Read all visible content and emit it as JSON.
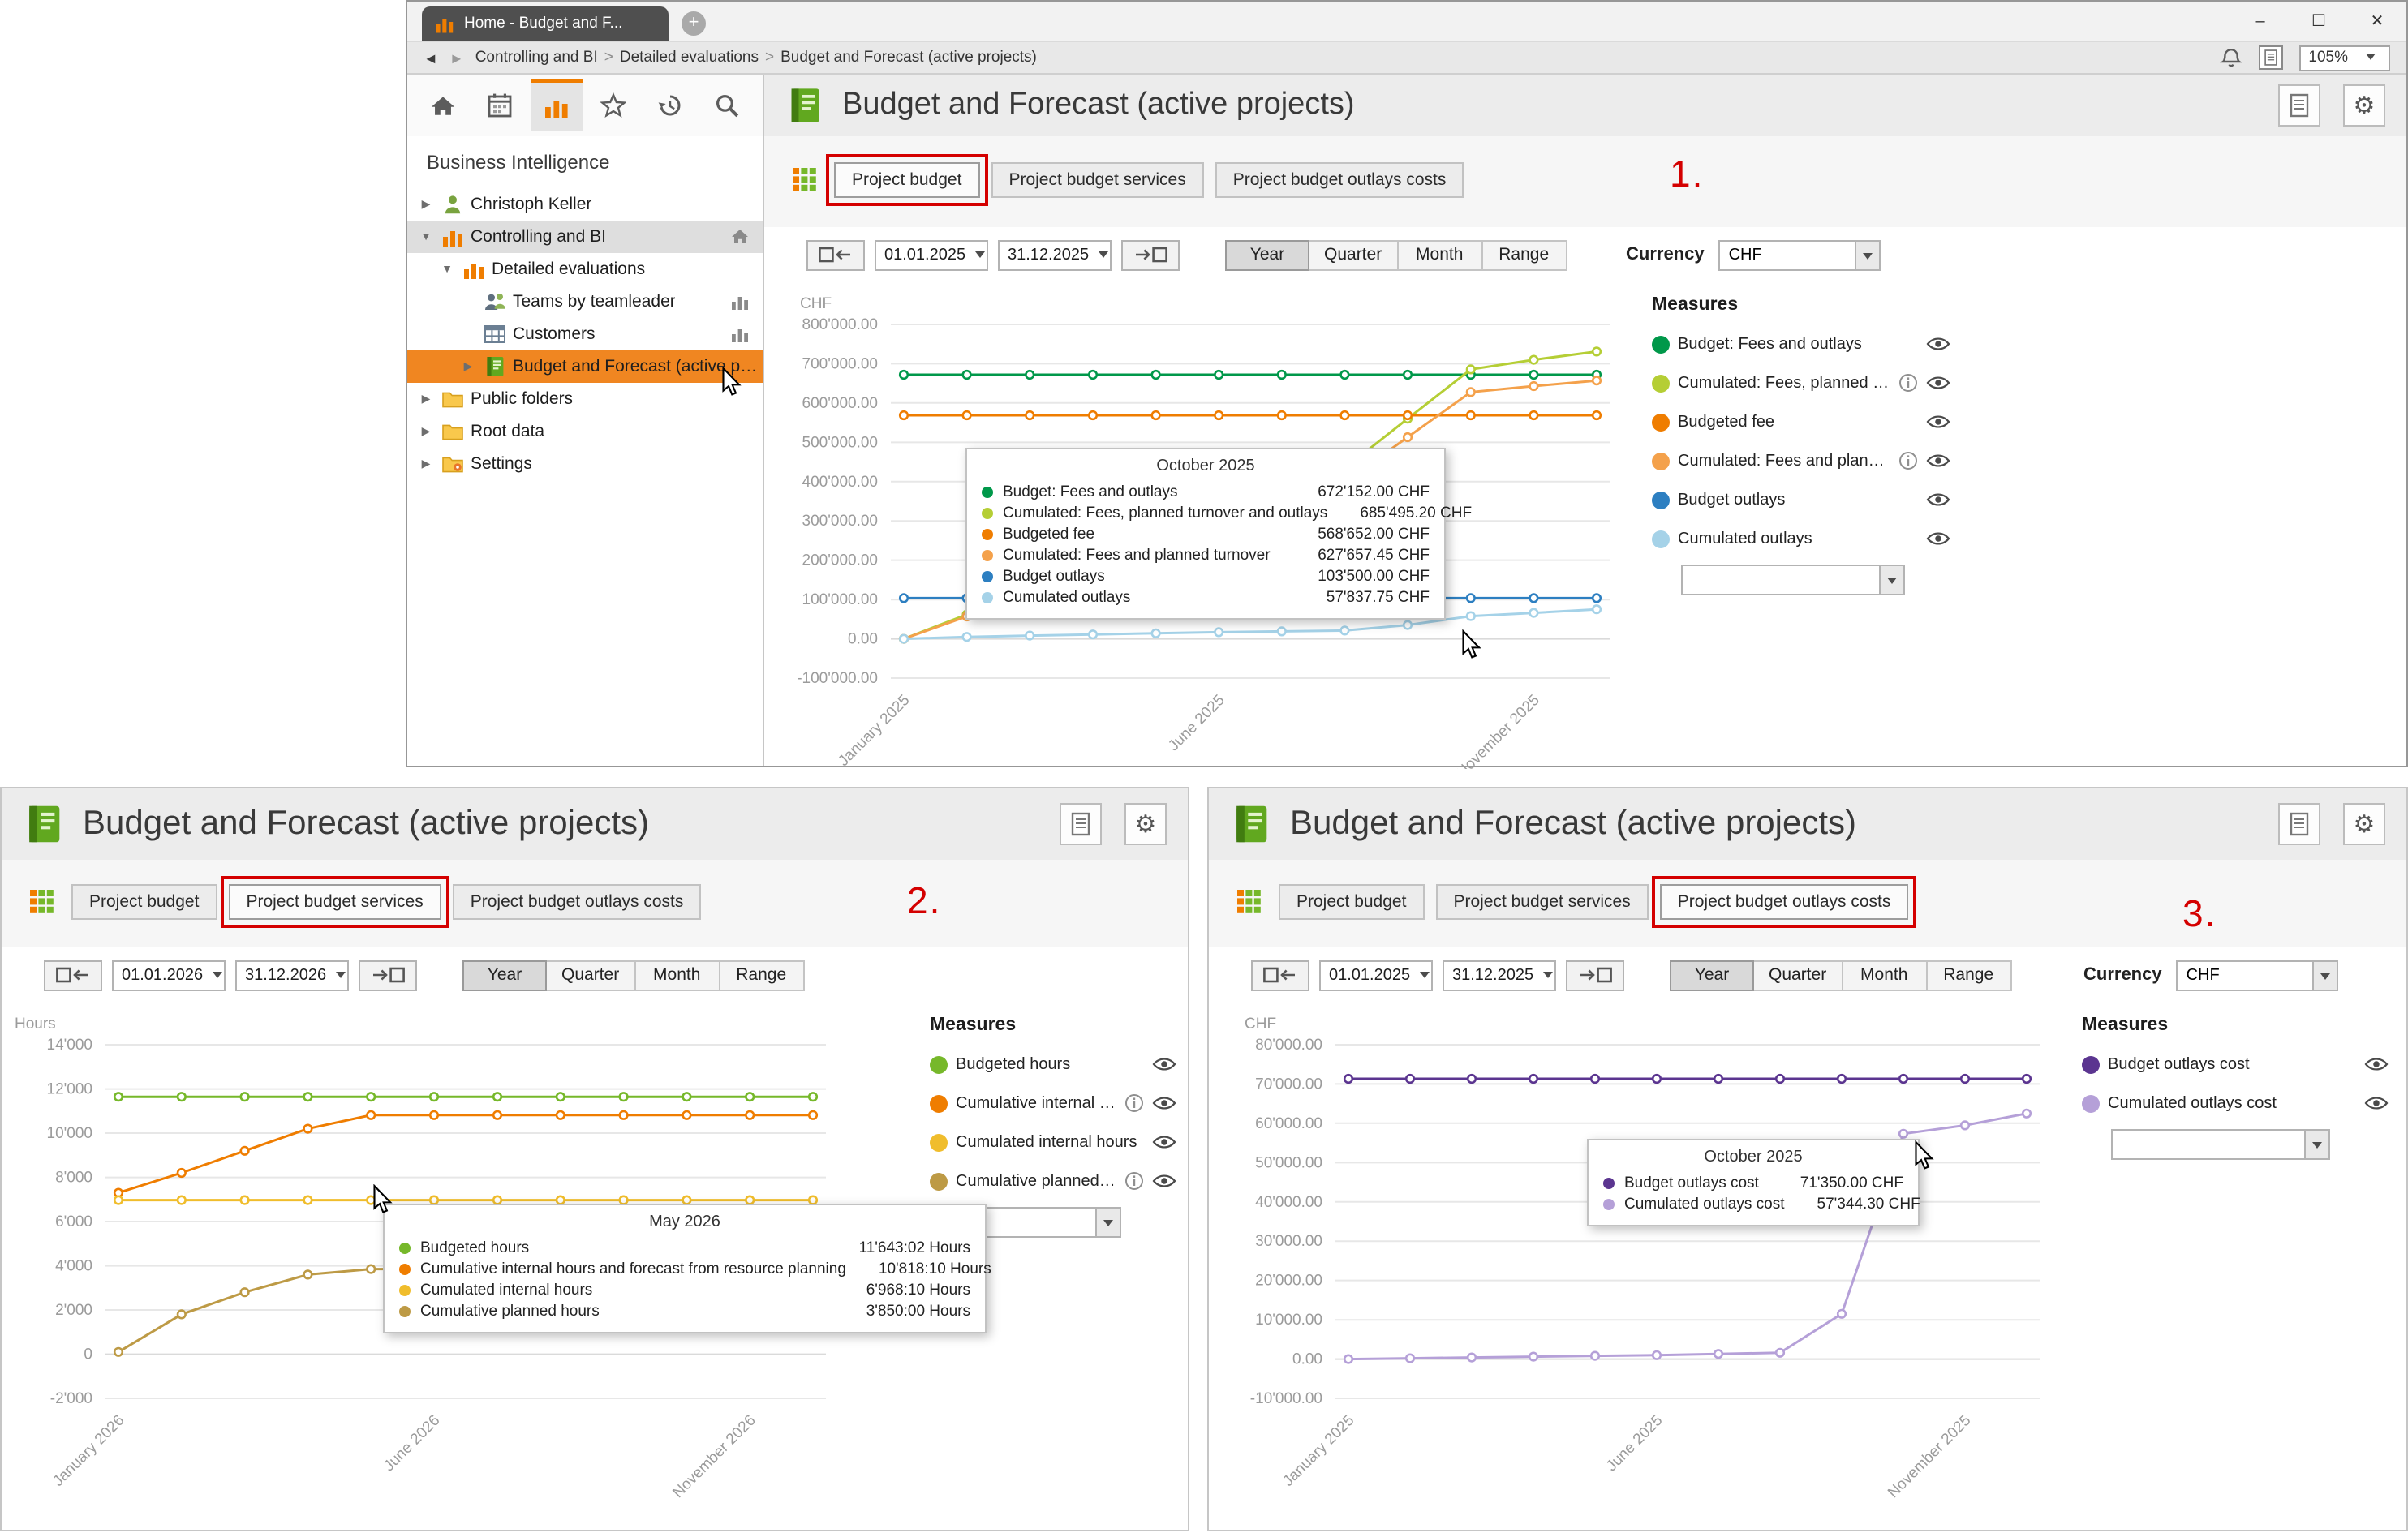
{
  "icons": {
    "new_tab": "+",
    "gear": "⚙",
    "expander_collapsed": "▶",
    "expander_expanded": "▼"
  },
  "browser": {
    "tab_title": "Home - Budget and F...",
    "window_buttons": {
      "minimize": "–",
      "maximize": "☐",
      "close": "✕"
    },
    "nav": {
      "back_icon": "◄",
      "forward_icon": "►",
      "separator": ">",
      "breadcrumb": [
        "Controlling and BI",
        "Detailed evaluations",
        "Budget and Forecast (active projects)"
      ],
      "zoom_level": "105%"
    }
  },
  "sidebar": {
    "section_title": "Business Intelligence",
    "toolbar": [
      {
        "name": "home",
        "active": false
      },
      {
        "name": "calendar",
        "active": false
      },
      {
        "name": "chart",
        "active": true
      },
      {
        "name": "star",
        "active": false
      },
      {
        "name": "history",
        "active": false
      },
      {
        "name": "search",
        "active": false
      }
    ],
    "tree": [
      {
        "label": "Christoph Keller",
        "icon": "person",
        "expander": "collapsed",
        "indent": 0
      },
      {
        "label": "Controlling and BI",
        "icon": "chart-small",
        "expander": "expanded",
        "indent": 0,
        "highlight": "gray",
        "trailing": "home-small"
      },
      {
        "label": "Detailed evaluations",
        "icon": "chart-small",
        "expander": "expanded",
        "indent": 1
      },
      {
        "label": "Teams by teamleader",
        "icon": "people",
        "indent": 2,
        "trailing": "chart-mini"
      },
      {
        "label": "Customers",
        "icon": "table",
        "indent": 2,
        "trailing": "chart-mini"
      },
      {
        "label": "Budget and Forecast (active projects)",
        "icon": "book",
        "expander": "collapsed",
        "indent": 2,
        "highlight": "orange",
        "cursor": true
      },
      {
        "label": "Public folders",
        "icon": "folder",
        "expander": "collapsed",
        "indent": 0
      },
      {
        "label": "Root data",
        "icon": "folder",
        "expander": "collapsed",
        "indent": 0
      },
      {
        "label": "Settings",
        "icon": "folder-settings",
        "expander": "collapsed",
        "indent": 0
      }
    ]
  },
  "panels": [
    {
      "annotation": "1.",
      "title": "Budget and Forecast (active projects)",
      "tabs": [
        {
          "label": "Project budget",
          "active": true,
          "annotated": true
        },
        {
          "label": "Project budget services",
          "active": false,
          "annotated": false
        },
        {
          "label": "Project budget outlays costs",
          "active": false,
          "annotated": false
        }
      ],
      "controls": {
        "date_from": "01.01.2025",
        "date_to": "31.12.2025",
        "range_buttons": [
          {
            "label": "Year",
            "active": true
          },
          {
            "label": "Quarter",
            "active": false
          },
          {
            "label": "Month",
            "active": false
          },
          {
            "label": "Range",
            "active": false
          }
        ],
        "currency_label": "Currency",
        "currency_value": "CHF"
      },
      "measures_title": "Measures",
      "measures": [
        {
          "label": "Budget: Fees and outlays",
          "color": "#00984a",
          "info": false
        },
        {
          "label": "Cumulated: Fees, planned tur...",
          "color": "#b5ce35",
          "info": true
        },
        {
          "label": "Budgeted fee",
          "color": "#ef7d00",
          "info": false
        },
        {
          "label": "Cumulated: Fees and planne...",
          "color": "#f4a14b",
          "info": true
        },
        {
          "label": "Budget outlays",
          "color": "#2d7fc1",
          "info": false
        },
        {
          "label": "Cumulated outlays",
          "color": "#a5d2e8",
          "info": false
        }
      ],
      "tooltip": {
        "title": "October 2025",
        "rows": [
          {
            "color": "#00984a",
            "label": "Budget: Fees and outlays",
            "value": "672'152.00 CHF"
          },
          {
            "color": "#b5ce35",
            "label": "Cumulated: Fees, planned turnover and outlays",
            "value": "685'495.20 CHF"
          },
          {
            "color": "#ef7d00",
            "label": "Budgeted fee",
            "value": "568'652.00 CHF"
          },
          {
            "color": "#f4a14b",
            "label": "Cumulated: Fees and planned turnover",
            "value": "627'657.45 CHF"
          },
          {
            "color": "#2d7fc1",
            "label": "Budget outlays",
            "value": "103'500.00 CHF"
          },
          {
            "color": "#a5d2e8",
            "label": "Cumulated outlays",
            "value": "57'837.75 CHF"
          }
        ]
      }
    },
    {
      "annotation": "2.",
      "title": "Budget and Forecast (active projects)",
      "tabs": [
        {
          "label": "Project budget",
          "active": false,
          "annotated": false
        },
        {
          "label": "Project budget services",
          "active": true,
          "annotated": true
        },
        {
          "label": "Project budget outlays costs",
          "active": false,
          "annotated": false
        }
      ],
      "controls": {
        "date_from": "01.01.2026",
        "date_to": "31.12.2026",
        "range_buttons": [
          {
            "label": "Year",
            "active": true
          },
          {
            "label": "Quarter",
            "active": false
          },
          {
            "label": "Month",
            "active": false
          },
          {
            "label": "Range",
            "active": false
          }
        ]
      },
      "measures_title": "Measures",
      "measures": [
        {
          "label": "Budgeted hours",
          "color": "#76b82a",
          "info": false
        },
        {
          "label": "Cumulative internal hours an...",
          "color": "#ef7d00",
          "info": true
        },
        {
          "label": "Cumulated internal hours",
          "color": "#f0bd2c",
          "info": false
        },
        {
          "label": "Cumulative planned hours",
          "color": "#bd9a45",
          "info": true
        }
      ],
      "tooltip": {
        "title": "May 2026",
        "rows": [
          {
            "color": "#76b82a",
            "label": "Budgeted hours",
            "value": "11'643:02 Hours"
          },
          {
            "color": "#ef7d00",
            "label": "Cumulative internal hours and forecast from resource planning",
            "value": "10'818:10 Hours"
          },
          {
            "color": "#f0bd2c",
            "label": "Cumulated internal hours",
            "value": "6'968:10 Hours"
          },
          {
            "color": "#bd9a45",
            "label": "Cumulative planned hours",
            "value": "3'850:00 Hours"
          }
        ]
      }
    },
    {
      "annotation": "3.",
      "title": "Budget and Forecast (active projects)",
      "tabs": [
        {
          "label": "Project budget",
          "active": false,
          "annotated": false
        },
        {
          "label": "Project budget services",
          "active": false,
          "annotated": false
        },
        {
          "label": "Project budget outlays costs",
          "active": true,
          "annotated": true
        }
      ],
      "controls": {
        "date_from": "01.01.2025",
        "date_to": "31.12.2025",
        "range_buttons": [
          {
            "label": "Year",
            "active": true
          },
          {
            "label": "Quarter",
            "active": false
          },
          {
            "label": "Month",
            "active": false
          },
          {
            "label": "Range",
            "active": false
          }
        ],
        "currency_label": "Currency",
        "currency_value": "CHF"
      },
      "measures_title": "Measures",
      "measures": [
        {
          "label": "Budget outlays cost",
          "color": "#5b3590",
          "info": false
        },
        {
          "label": "Cumulated outlays cost",
          "color": "#b5a0d8",
          "info": false
        }
      ],
      "tooltip": {
        "title": "October 2025",
        "rows": [
          {
            "color": "#5b3590",
            "label": "Budget outlays cost",
            "value": "71'350.00 CHF"
          },
          {
            "color": "#b5a0d8",
            "label": "Cumulated outlays cost",
            "value": "57'344.30 CHF"
          }
        ]
      }
    }
  ],
  "chart_data": [
    {
      "type": "line",
      "unit_label": "CHF",
      "x": [
        "January 2025",
        "February 2025",
        "March 2025",
        "April 2025",
        "May 2025",
        "June 2025",
        "July 2025",
        "August 2025",
        "September 2025",
        "October 2025",
        "November 2025",
        "December 2025"
      ],
      "x_tick_indices": [
        0,
        5,
        10
      ],
      "ylim": [
        -100000,
        800000
      ],
      "yticks": [
        800000,
        700000,
        600000,
        500000,
        400000,
        300000,
        200000,
        100000,
        0,
        -100000
      ],
      "ytick_labels": [
        "800'000.00",
        "700'000.00",
        "600'000.00",
        "500'000.00",
        "400'000.00",
        "300'000.00",
        "200'000.00",
        "100'000.00",
        "0.00",
        "-100'000.00"
      ],
      "grid": true,
      "legend_position": "right",
      "series": [
        {
          "name": "Budget: Fees and outlays",
          "color": "#00984a",
          "values": [
            672152,
            672152,
            672152,
            672152,
            672152,
            672152,
            672152,
            672152,
            672152,
            672152,
            672152,
            672152
          ]
        },
        {
          "name": "Cumulated: Fees, planned turnover and outlays",
          "color": "#b5ce35",
          "values": [
            0,
            62000,
            124000,
            186000,
            248000,
            310000,
            372000,
            434000,
            560000,
            685495,
            710000,
            731000
          ]
        },
        {
          "name": "Budgeted fee",
          "color": "#ef7d00",
          "values": [
            568652,
            568652,
            568652,
            568652,
            568652,
            568652,
            568652,
            568652,
            568652,
            568652,
            568652,
            568652
          ]
        },
        {
          "name": "Cumulated: Fees and planned turnover",
          "color": "#f4a14b",
          "values": [
            0,
            57000,
            114000,
            171000,
            228000,
            285000,
            342000,
            399000,
            513000,
            627657,
            643000,
            657000
          ]
        },
        {
          "name": "Budget outlays",
          "color": "#2d7fc1",
          "values": [
            103500,
            103500,
            103500,
            103500,
            103500,
            103500,
            103500,
            103500,
            103500,
            103500,
            103500,
            103500
          ]
        },
        {
          "name": "Cumulated outlays",
          "color": "#a5d2e8",
          "values": [
            0,
            5000,
            8000,
            11000,
            14000,
            17000,
            19000,
            21000,
            35000,
            57838,
            66000,
            75000
          ]
        }
      ]
    },
    {
      "type": "line",
      "unit_label": "Hours",
      "x": [
        "January 2026",
        "February 2026",
        "March 2026",
        "April 2026",
        "May 2026",
        "June 2026",
        "July 2026",
        "August 2026",
        "September 2026",
        "October 2026",
        "November 2026",
        "December 2026"
      ],
      "x_tick_indices": [
        0,
        5,
        10
      ],
      "ylim": [
        -2000,
        14000
      ],
      "yticks": [
        14000,
        12000,
        10000,
        8000,
        6000,
        4000,
        2000,
        0,
        -2000
      ],
      "ytick_labels": [
        "14'000",
        "12'000",
        "10'000",
        "8'000",
        "6'000",
        "4'000",
        "2'000",
        "0",
        "-2'000"
      ],
      "grid": true,
      "legend_position": "right",
      "series": [
        {
          "name": "Budgeted hours",
          "color": "#76b82a",
          "values": [
            11643,
            11643,
            11643,
            11643,
            11643,
            11643,
            11643,
            11643,
            11643,
            11643,
            11643,
            11643
          ]
        },
        {
          "name": "Cumulative internal hours and forecast from resource planning",
          "color": "#ef7d00",
          "values": [
            7300,
            8200,
            9200,
            10200,
            10818,
            10818,
            10818,
            10818,
            10818,
            10818,
            10818,
            10818
          ]
        },
        {
          "name": "Cumulated internal hours",
          "color": "#f0bd2c",
          "values": [
            6968,
            6968,
            6968,
            6968,
            6968,
            6968,
            6968,
            6968,
            6968,
            6968,
            6968,
            6968
          ]
        },
        {
          "name": "Cumulative planned hours",
          "color": "#bd9a45",
          "values": [
            100,
            1800,
            2800,
            3600,
            3850,
            3850,
            3850,
            3850,
            3850,
            3850,
            3850,
            3850
          ]
        }
      ]
    },
    {
      "type": "line",
      "unit_label": "CHF",
      "x": [
        "January 2025",
        "February 2025",
        "March 2025",
        "April 2025",
        "May 2025",
        "June 2025",
        "July 2025",
        "August 2025",
        "September 2025",
        "October 2025",
        "November 2025",
        "December 2025"
      ],
      "x_tick_indices": [
        0,
        5,
        10
      ],
      "ylim": [
        -10000,
        80000
      ],
      "yticks": [
        80000,
        70000,
        60000,
        50000,
        40000,
        30000,
        20000,
        10000,
        0,
        -10000
      ],
      "ytick_labels": [
        "80'000.00",
        "70'000.00",
        "60'000.00",
        "50'000.00",
        "40'000.00",
        "30'000.00",
        "20'000.00",
        "10'000.00",
        "0.00",
        "-10'000.00"
      ],
      "grid": true,
      "legend_position": "right",
      "series": [
        {
          "name": "Budget outlays cost",
          "color": "#5b3590",
          "values": [
            71350,
            71350,
            71350,
            71350,
            71350,
            71350,
            71350,
            71350,
            71350,
            71350,
            71350,
            71350
          ]
        },
        {
          "name": "Cumulated outlays cost",
          "color": "#b5a0d8",
          "values": [
            0,
            200,
            400,
            600,
            800,
            1000,
            1300,
            1600,
            11500,
            57344,
            59500,
            62500
          ]
        }
      ]
    }
  ]
}
